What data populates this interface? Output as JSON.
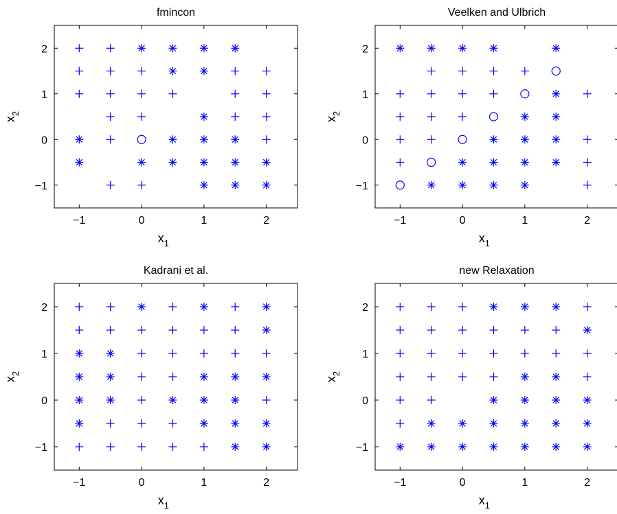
{
  "figure": {
    "marker_color": "#0000ff",
    "legend": {
      "plus": "plus-marker",
      "star": "asterisk-marker",
      "circle": "circle-marker"
    }
  },
  "chart_data": [
    {
      "type": "scatter",
      "title": "fmincon",
      "xlabel": "x_1",
      "ylabel": "x_2",
      "xlim": [
        -1.4,
        2.5
      ],
      "ylim": [
        -1.5,
        2.5
      ],
      "xticks": [
        -1,
        0,
        1,
        2
      ],
      "yticks": [
        -1,
        0,
        1,
        2
      ],
      "grid": false,
      "points": {
        "plus": [
          [
            -1,
            2
          ],
          [
            -0.5,
            2
          ],
          [
            -1,
            1.5
          ],
          [
            -0.5,
            1.5
          ],
          [
            0,
            1.5
          ],
          [
            1.5,
            1.5
          ],
          [
            2,
            1.5
          ],
          [
            -1,
            1
          ],
          [
            -0.5,
            1
          ],
          [
            0,
            1
          ],
          [
            0.5,
            1
          ],
          [
            1.5,
            1
          ],
          [
            2,
            1
          ],
          [
            -0.5,
            0.5
          ],
          [
            0,
            0.5
          ],
          [
            1.5,
            0.5
          ],
          [
            2,
            0.5
          ],
          [
            -0.5,
            0
          ],
          [
            2,
            0
          ],
          [
            -0.5,
            -1
          ],
          [
            0,
            -1
          ]
        ],
        "star": [
          [
            0,
            2
          ],
          [
            0.5,
            2
          ],
          [
            1,
            2
          ],
          [
            1.5,
            2
          ],
          [
            0.5,
            1.5
          ],
          [
            1,
            1.5
          ],
          [
            1,
            0.5
          ],
          [
            -1,
            0
          ],
          [
            0.5,
            0
          ],
          [
            1,
            0
          ],
          [
            1.5,
            0
          ],
          [
            -1,
            -0.5
          ],
          [
            0,
            -0.5
          ],
          [
            0.5,
            -0.5
          ],
          [
            1,
            -0.5
          ],
          [
            1.5,
            -0.5
          ],
          [
            2,
            -0.5
          ],
          [
            1,
            -1
          ],
          [
            1.5,
            -1
          ],
          [
            2,
            -1
          ]
        ],
        "circle": [
          [
            0,
            0
          ]
        ]
      }
    },
    {
      "type": "scatter",
      "title": "Veelken and Ulbrich",
      "xlabel": "x_1",
      "ylabel": "x_2",
      "xlim": [
        -1.4,
        2.5
      ],
      "ylim": [
        -1.5,
        2.5
      ],
      "xticks": [
        -1,
        0,
        1,
        2
      ],
      "yticks": [
        -1,
        0,
        1,
        2
      ],
      "grid": false,
      "points": {
        "plus": [
          [
            -0.5,
            1.5
          ],
          [
            0,
            1.5
          ],
          [
            0.5,
            1.5
          ],
          [
            1,
            1.5
          ],
          [
            -1,
            1
          ],
          [
            -0.5,
            1
          ],
          [
            0,
            1
          ],
          [
            0.5,
            1
          ],
          [
            2,
            1
          ],
          [
            -1,
            0.5
          ],
          [
            -0.5,
            0.5
          ],
          [
            0,
            0.5
          ],
          [
            -1,
            0
          ],
          [
            -0.5,
            0
          ],
          [
            2,
            0
          ],
          [
            -1,
            -0.5
          ],
          [
            2,
            -0.5
          ],
          [
            2,
            -1
          ]
        ],
        "star": [
          [
            -1,
            2
          ],
          [
            -0.5,
            2
          ],
          [
            0,
            2
          ],
          [
            0.5,
            2
          ],
          [
            1.5,
            2
          ],
          [
            1.5,
            1
          ],
          [
            1,
            0.5
          ],
          [
            1.5,
            0.5
          ],
          [
            0.5,
            0
          ],
          [
            1,
            0
          ],
          [
            1.5,
            0
          ],
          [
            0,
            -0.5
          ],
          [
            0.5,
            -0.5
          ],
          [
            1,
            -0.5
          ],
          [
            1.5,
            -0.5
          ],
          [
            -0.5,
            -1
          ],
          [
            0,
            -1
          ],
          [
            0.5,
            -1
          ],
          [
            1,
            -1
          ]
        ],
        "circle": [
          [
            1.5,
            1.5
          ],
          [
            1,
            1
          ],
          [
            0.5,
            0.5
          ],
          [
            0,
            0
          ],
          [
            -0.5,
            -0.5
          ],
          [
            -1,
            -1
          ]
        ]
      }
    },
    {
      "type": "scatter",
      "title": "Kadrani et al.",
      "xlabel": "x_1",
      "ylabel": "x_2",
      "xlim": [
        -1.4,
        2.5
      ],
      "ylim": [
        -1.5,
        2.5
      ],
      "xticks": [
        -1,
        0,
        1,
        2
      ],
      "yticks": [
        -1,
        0,
        1,
        2
      ],
      "grid": false,
      "points": {
        "plus": [
          [
            -1,
            2
          ],
          [
            -0.5,
            2
          ],
          [
            0.5,
            2
          ],
          [
            1.5,
            2
          ],
          [
            -1,
            1.5
          ],
          [
            -0.5,
            1.5
          ],
          [
            0,
            1.5
          ],
          [
            0.5,
            1.5
          ],
          [
            1,
            1.5
          ],
          [
            1.5,
            1.5
          ],
          [
            0,
            1
          ],
          [
            0.5,
            1
          ],
          [
            1,
            1
          ],
          [
            1.5,
            1
          ],
          [
            2,
            1
          ],
          [
            0,
            0.5
          ],
          [
            0.5,
            0.5
          ],
          [
            0,
            0
          ],
          [
            2,
            0
          ],
          [
            -0.5,
            -0.5
          ],
          [
            0,
            -0.5
          ],
          [
            0.5,
            -0.5
          ],
          [
            -1,
            -1
          ],
          [
            -0.5,
            -1
          ],
          [
            0,
            -1
          ],
          [
            0.5,
            -1
          ],
          [
            1,
            -1
          ]
        ],
        "star": [
          [
            0,
            2
          ],
          [
            1,
            2
          ],
          [
            2,
            2
          ],
          [
            2,
            1.5
          ],
          [
            -1,
            1
          ],
          [
            -0.5,
            1
          ],
          [
            -1,
            0.5
          ],
          [
            -0.5,
            0.5
          ],
          [
            1,
            0.5
          ],
          [
            1.5,
            0.5
          ],
          [
            2,
            0.5
          ],
          [
            -1,
            0
          ],
          [
            -0.5,
            0
          ],
          [
            0.5,
            0
          ],
          [
            1,
            0
          ],
          [
            1.5,
            0
          ],
          [
            -1,
            -0.5
          ],
          [
            1,
            -0.5
          ],
          [
            1.5,
            -0.5
          ],
          [
            2,
            -0.5
          ],
          [
            1.5,
            -1
          ],
          [
            2,
            -1
          ]
        ],
        "circle": []
      }
    },
    {
      "type": "scatter",
      "title": "new Relaxation",
      "xlabel": "x_1",
      "ylabel": "x_2",
      "xlim": [
        -1.4,
        2.5
      ],
      "ylim": [
        -1.5,
        2.5
      ],
      "xticks": [
        -1,
        0,
        1,
        2
      ],
      "yticks": [
        -1,
        0,
        1,
        2
      ],
      "grid": false,
      "points": {
        "plus": [
          [
            -1,
            2
          ],
          [
            -0.5,
            2
          ],
          [
            0,
            2
          ],
          [
            2,
            2
          ],
          [
            -1,
            1.5
          ],
          [
            -0.5,
            1.5
          ],
          [
            0,
            1.5
          ],
          [
            0.5,
            1.5
          ],
          [
            1,
            1.5
          ],
          [
            1.5,
            1.5
          ],
          [
            -1,
            1
          ],
          [
            -0.5,
            1
          ],
          [
            0,
            1
          ],
          [
            0.5,
            1
          ],
          [
            1,
            1
          ],
          [
            1.5,
            1
          ],
          [
            2,
            1
          ],
          [
            -1,
            0.5
          ],
          [
            -0.5,
            0.5
          ],
          [
            0,
            0.5
          ],
          [
            0.5,
            0.5
          ],
          [
            2,
            0.5
          ],
          [
            -1,
            0
          ],
          [
            -0.5,
            0
          ],
          [
            -1,
            -0.5
          ]
        ],
        "star": [
          [
            0.5,
            2
          ],
          [
            1,
            2
          ],
          [
            1.5,
            2
          ],
          [
            2,
            1.5
          ],
          [
            1,
            0.5
          ],
          [
            1.5,
            0.5
          ],
          [
            0.5,
            0
          ],
          [
            1,
            0
          ],
          [
            1.5,
            0
          ],
          [
            2,
            0
          ],
          [
            -0.5,
            -0.5
          ],
          [
            0,
            -0.5
          ],
          [
            0.5,
            -0.5
          ],
          [
            1,
            -0.5
          ],
          [
            1.5,
            -0.5
          ],
          [
            2,
            -0.5
          ],
          [
            -1,
            -1
          ],
          [
            -0.5,
            -1
          ],
          [
            0,
            -1
          ],
          [
            0.5,
            -1
          ],
          [
            1,
            -1
          ],
          [
            1.5,
            -1
          ],
          [
            2,
            -1
          ]
        ],
        "circle": []
      }
    }
  ]
}
